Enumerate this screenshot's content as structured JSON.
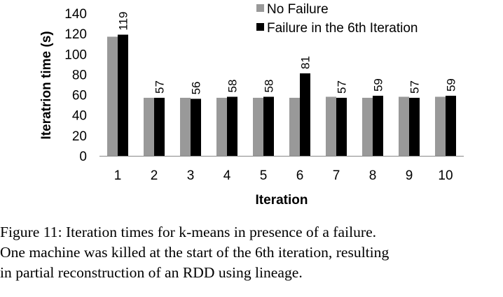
{
  "chart_data": {
    "type": "bar",
    "categories": [
      "1",
      "2",
      "3",
      "4",
      "5",
      "6",
      "7",
      "8",
      "9",
      "10"
    ],
    "series": [
      {
        "name": "No Failure",
        "values": [
          117,
          57,
          57,
          57,
          57,
          57,
          58,
          57,
          58,
          58
        ],
        "color": "#999999",
        "labels_shown": false
      },
      {
        "name": "Failure in the 6th Iteration",
        "values": [
          119,
          57,
          56,
          58,
          58,
          81,
          57,
          59,
          57,
          59
        ],
        "color": "#000000",
        "labels_shown": true
      }
    ],
    "xlabel": "Iteration",
    "ylabel": "Iteratrion time (s)",
    "ylim": [
      0,
      140
    ],
    "yticks": [
      0,
      20,
      40,
      60,
      80,
      100,
      120,
      140
    ],
    "grid": false,
    "legend_position": "top-right"
  },
  "caption": {
    "lines": [
      "Figure 11: Iteration times for k-means in presence of a failure.",
      "One machine was killed at the start of the 6th iteration, resulting",
      "in partial reconstruction of an RDD using lineage."
    ]
  }
}
